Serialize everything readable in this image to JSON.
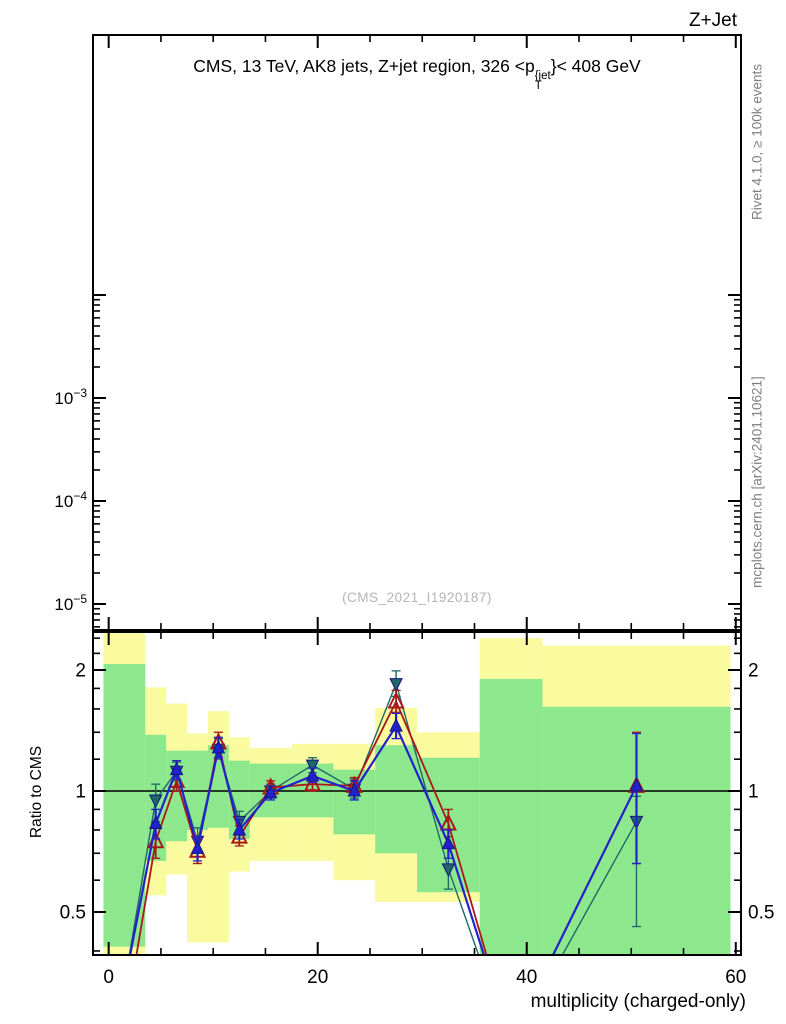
{
  "window": {
    "plot_group_title": "Z+Jet"
  },
  "main_panel": {
    "title": {
      "prefix": "CMS, 13 TeV, AK8 jets, Z+jet region, 326 <p",
      "sup": "{jet",
      "sub": "T",
      "suffix": "}< 408 GeV"
    },
    "watermark": "(CMS_2021_I1920187)"
  },
  "right_margin": {
    "top_label": "Rivet 4.1.0, ≥ 100k events",
    "bottom_label": "mcplots.cern.ch [arXiv:2401.10621]"
  },
  "ratio_panel": {
    "y_label": "Ratio to CMS",
    "x_label": "multiplicity (charged-only)"
  },
  "chart_data": {
    "type": "line",
    "title": "CMS, 13 TeV, AK8 jets, Z+jet region, 326 <p_T^{jet}< 408 GeV",
    "xlabel": "multiplicity (charged-only)",
    "x_range": [
      -1.5,
      60.5
    ],
    "x_major_ticks": [
      {
        "v": 0,
        "label": "0"
      },
      {
        "v": 20,
        "label": "20"
      },
      {
        "v": 40,
        "label": "40"
      },
      {
        "v": 60,
        "label": "60"
      }
    ],
    "x_minor_ticks": [
      5,
      10,
      15,
      25,
      30,
      35,
      45,
      50,
      55
    ],
    "main_axis": {
      "scale": "log",
      "ylim": [
        5.6e-06,
        3.3
      ],
      "major_ticks": [
        0.01,
        0.001,
        0.0001,
        1e-05
      ],
      "labeled_ticks": [
        {
          "v": 0.001,
          "base": "10",
          "exponent": "−3"
        },
        {
          "v": 0.0001,
          "base": "10",
          "exponent": "−4"
        },
        {
          "v": 1e-05,
          "base": "10",
          "exponent": "−5"
        }
      ],
      "minor_decades": [
        -3,
        -4,
        -5
      ],
      "sub_minor_ticks": [
        6e-06,
        7e-06,
        8e-06,
        9e-06
      ],
      "content": "empty"
    },
    "ratio_axis": {
      "scale": "log",
      "ylim": [
        0.39,
        2.49
      ],
      "reference_line": 1.0,
      "major_ticks": [
        {
          "v": 2,
          "label": "2"
        },
        {
          "v": 1,
          "label": "1"
        },
        {
          "v": 0.5,
          "label": "0.5"
        }
      ],
      "minor_ticks": [
        0.4,
        0.6,
        0.7,
        0.8,
        0.9,
        1.2,
        1.4,
        1.6,
        1.8,
        2.2,
        2.4
      ]
    },
    "band_colors": {
      "outer_yellow": "#FAFA9E",
      "inner_green": "#8DE88D"
    },
    "bands": [
      {
        "x": [
          -0.5,
          3.5
        ],
        "outer": [
          0.32,
          2.62
        ],
        "inner": [
          0.41,
          2.07
        ]
      },
      {
        "x": [
          3.5,
          5.5
        ],
        "outer": [
          0.55,
          1.81
        ],
        "inner": [
          0.67,
          1.38
        ]
      },
      {
        "x": [
          5.5,
          7.5
        ],
        "outer": [
          0.62,
          1.65
        ],
        "inner": [
          0.75,
          1.26
        ]
      },
      {
        "x": [
          7.5,
          9.5
        ],
        "outer": [
          0.42,
          1.39
        ],
        "inner": [
          0.8,
          1.26
        ]
      },
      {
        "x": [
          9.5,
          11.5
        ],
        "outer": [
          0.42,
          1.58
        ],
        "inner": [
          0.81,
          1.3
        ]
      },
      {
        "x": [
          11.5,
          13.5
        ],
        "outer": [
          0.63,
          1.36
        ],
        "inner": [
          0.76,
          1.19
        ]
      },
      {
        "x": [
          13.5,
          17.5
        ],
        "outer": [
          0.67,
          1.28
        ],
        "inner": [
          0.86,
          1.17
        ]
      },
      {
        "x": [
          17.5,
          21.5
        ],
        "outer": [
          0.67,
          1.31
        ],
        "inner": [
          0.86,
          1.17
        ]
      },
      {
        "x": [
          21.5,
          25.5
        ],
        "outer": [
          0.6,
          1.31
        ],
        "inner": [
          0.78,
          1.13
        ]
      },
      {
        "x": [
          25.5,
          29.5
        ],
        "outer": [
          0.53,
          1.61
        ],
        "inner": [
          0.7,
          1.3
        ]
      },
      {
        "x": [
          29.5,
          35.5
        ],
        "outer": [
          0.53,
          1.4
        ],
        "inner": [
          0.56,
          1.21
        ]
      },
      {
        "x": [
          35.5,
          41.5
        ],
        "outer": [
          0.32,
          2.4
        ],
        "inner": [
          0.32,
          1.9
        ]
      },
      {
        "x": [
          41.5,
          59.5
        ],
        "outer": [
          0.32,
          2.3
        ],
        "inner": [
          0.32,
          1.62
        ]
      }
    ],
    "x": [
      1.5,
      4.5,
      6.5,
      8.5,
      10.5,
      12.5,
      15.5,
      19.5,
      23.5,
      27.5,
      32.5,
      38.5,
      50.5
    ],
    "series": [
      {
        "name": "teal-filled-triangle-down",
        "marker": "triangle-down",
        "marker_fill": "solid",
        "color": "#1F6868",
        "line_width": 1.4,
        "values": [
          0.33,
          0.95,
          1.12,
          0.75,
          1.27,
          0.84,
          1.0,
          1.16,
          1.01,
          1.85,
          0.64,
          0.23,
          0.84
        ],
        "errors": [
          null,
          [
            0.84,
            1.04
          ],
          [
            1.06,
            1.18
          ],
          [
            0.7,
            0.81
          ],
          [
            1.2,
            1.35
          ],
          [
            0.79,
            0.89
          ],
          [
            0.96,
            1.04
          ],
          [
            1.11,
            1.21
          ],
          [
            0.96,
            1.07
          ],
          [
            1.72,
            1.99
          ],
          [
            0.57,
            0.72
          ],
          null,
          [
            0.46,
            0.97
          ]
        ]
      },
      {
        "name": "red-open-triangle-up",
        "marker": "triangle-up",
        "marker_fill": "open",
        "color": "#A81818",
        "line_width": 1.8,
        "values": [
          0.26,
          0.75,
          1.06,
          0.71,
          1.32,
          0.77,
          1.02,
          1.04,
          1.03,
          1.67,
          0.83,
          0.24,
          1.03
        ],
        "errors": [
          null,
          [
            0.68,
            0.82
          ],
          [
            1.0,
            1.12
          ],
          [
            0.66,
            0.76
          ],
          [
            1.25,
            1.4
          ],
          [
            0.73,
            0.82
          ],
          [
            0.98,
            1.06
          ],
          [
            1.0,
            1.09
          ],
          [
            0.98,
            1.08
          ],
          [
            1.57,
            1.78
          ],
          [
            0.77,
            0.9
          ],
          null,
          [
            0.66,
            1.4
          ]
        ]
      },
      {
        "name": "blue-filled-triangle-up",
        "marker": "triangle-up",
        "marker_fill": "solid",
        "color": "#2222CC",
        "line_width": 2.2,
        "values": [
          0.33,
          0.83,
          1.13,
          0.72,
          1.28,
          0.8,
          0.99,
          1.09,
          1.0,
          1.45,
          0.74,
          0.24,
          1.03
        ],
        "errors": [
          null,
          [
            0.76,
            0.9
          ],
          [
            1.07,
            1.19
          ],
          [
            0.67,
            0.77
          ],
          [
            1.21,
            1.36
          ],
          [
            0.76,
            0.85
          ],
          [
            0.95,
            1.03
          ],
          [
            1.05,
            1.14
          ],
          [
            0.95,
            1.06
          ],
          [
            1.35,
            1.56
          ],
          [
            0.68,
            0.8
          ],
          null,
          [
            0.66,
            1.39
          ]
        ]
      }
    ]
  }
}
